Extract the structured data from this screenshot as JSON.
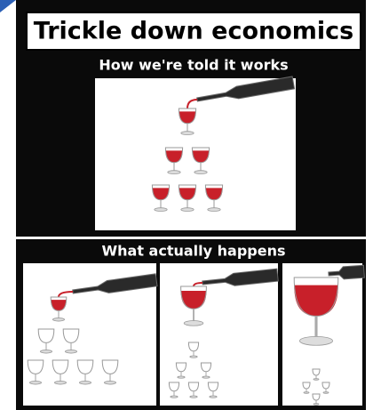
{
  "title": "Trickle down economics",
  "top_caption": "How we're told it works",
  "bottom_caption": "What actually happens"
}
